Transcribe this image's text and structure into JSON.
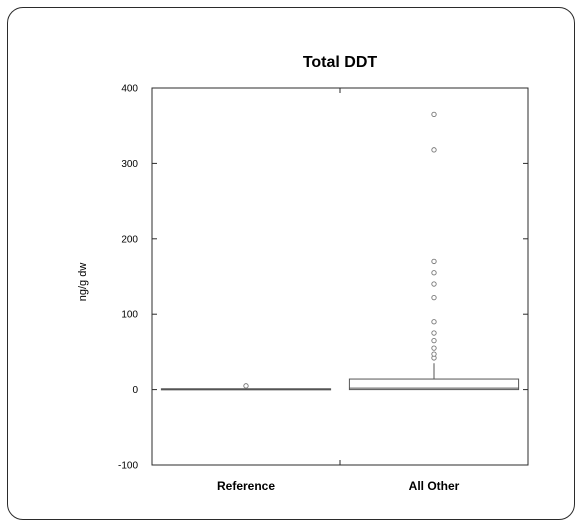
{
  "chart_data": {
    "type": "box",
    "title": "Total DDT",
    "xlabel": "",
    "ylabel": "ng/g dw",
    "ylim": [
      -100,
      400
    ],
    "yticks": [
      -100,
      0,
      100,
      200,
      300,
      400
    ],
    "categories": [
      "Reference",
      "All Other"
    ],
    "boxes": [
      {
        "category": "Reference",
        "min": 1,
        "q1": 1,
        "median": 1,
        "q3": 1,
        "max": 1,
        "outliers": [
          5
        ]
      },
      {
        "category": "All Other",
        "min": 0,
        "q1": 0,
        "median": 2,
        "q3": 14,
        "max": 35,
        "outliers": [
          42,
          47,
          55,
          65,
          75,
          90,
          122,
          140,
          155,
          170,
          318,
          365
        ]
      }
    ],
    "grid": false,
    "colors": {
      "line": "#2b2b2b",
      "box_outline": "#555555",
      "outlier": "#777777"
    }
  }
}
